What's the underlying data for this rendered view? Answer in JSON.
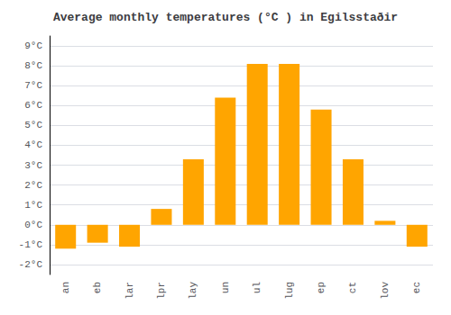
{
  "chart_data": {
    "type": "bar",
    "title": "Average monthly temperatures (°C ) in Egilsstaðir",
    "categories": [
      "an",
      "eb",
      "lar",
      "lpr",
      "lay",
      "un",
      "ul",
      "lug",
      "ep",
      "ct",
      "lov",
      "ec"
    ],
    "values": [
      -1.2,
      -0.9,
      -1.1,
      0.8,
      3.3,
      6.4,
      8.1,
      8.1,
      5.8,
      3.3,
      0.2,
      -1.1
    ],
    "color": "#FFA500",
    "ylim": [
      -2.5,
      9.5
    ],
    "yticks": [
      {
        "value": -2,
        "label": "-2°C"
      },
      {
        "value": -1,
        "label": "-1°C"
      },
      {
        "value": 0,
        "label": "0°C"
      },
      {
        "value": 1,
        "label": "1°C"
      },
      {
        "value": 2,
        "label": "2°C"
      },
      {
        "value": 3,
        "label": "3°C"
      },
      {
        "value": 4,
        "label": "4°C"
      },
      {
        "value": 5,
        "label": "5°C"
      },
      {
        "value": 6,
        "label": "6°C"
      },
      {
        "value": 7,
        "label": "7°C"
      },
      {
        "value": 8,
        "label": "8°C"
      },
      {
        "value": 9,
        "label": "9°C"
      }
    ],
    "grid": true
  }
}
